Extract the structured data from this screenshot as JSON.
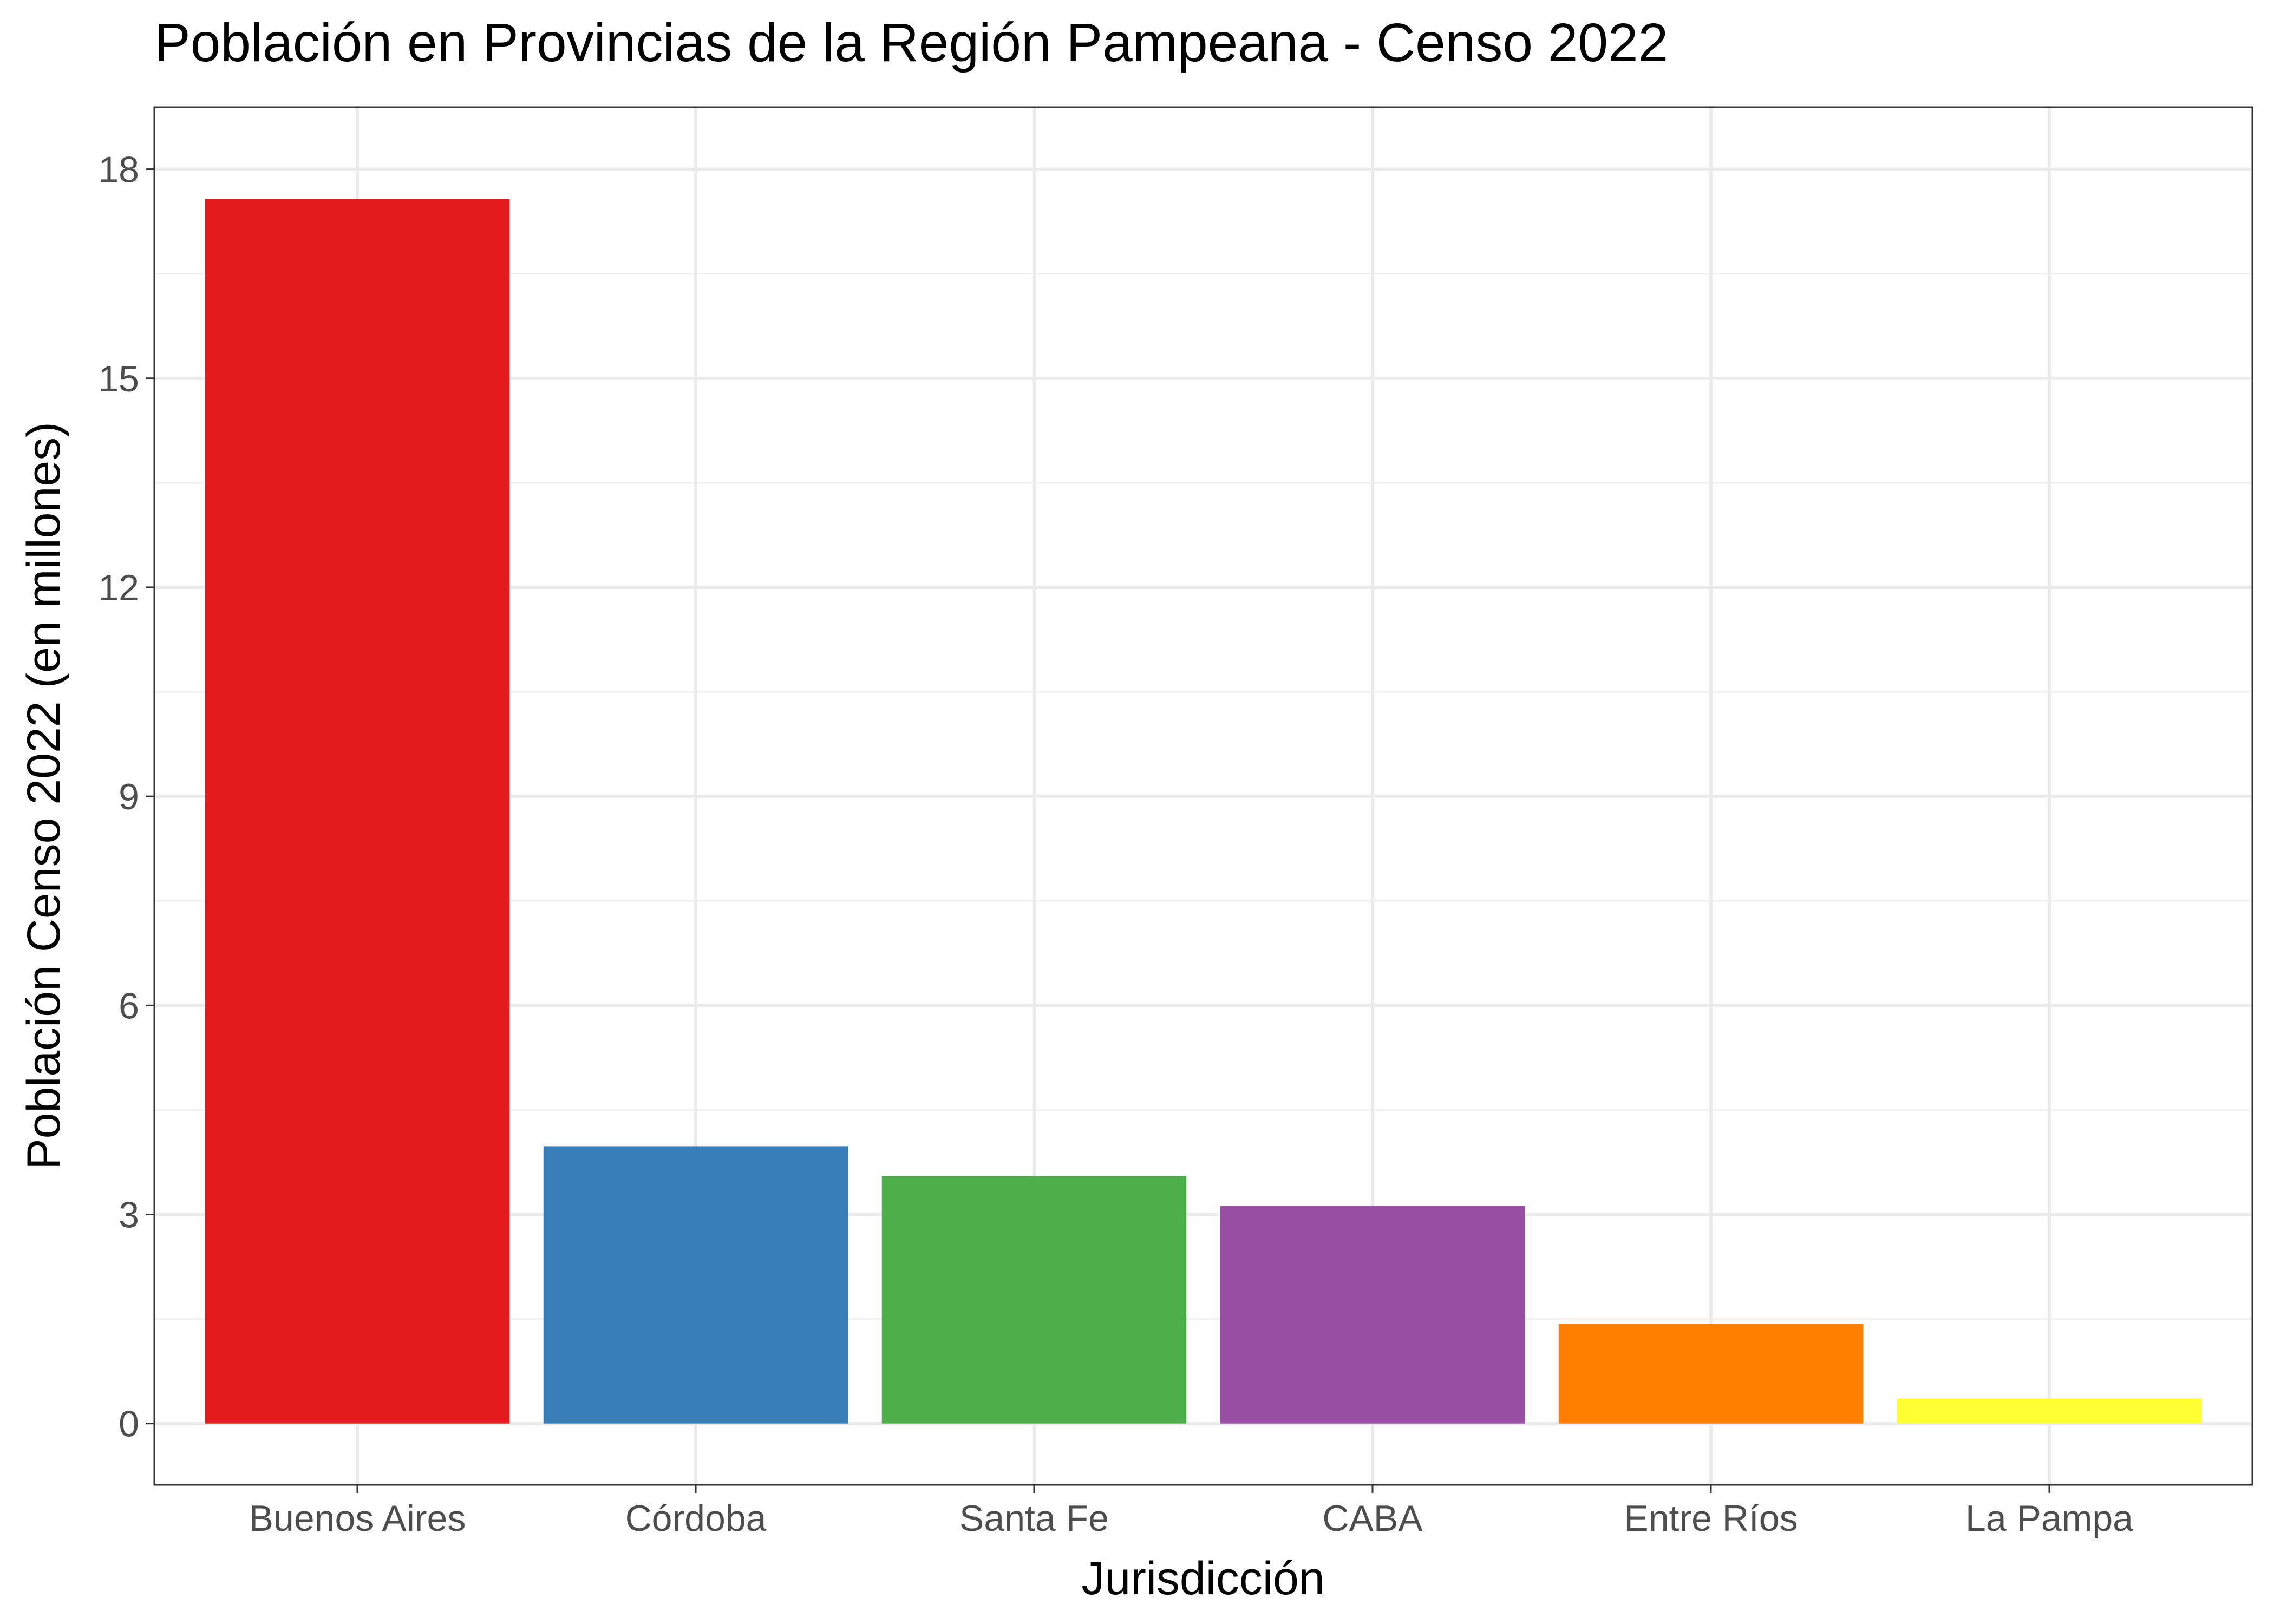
{
  "chart_data": {
    "type": "bar",
    "title": "Población en Provincias de la Región Pampeana - Censo 2022",
    "xlabel": "Jurisdicción",
    "ylabel": "Población Censo 2022 (en millones)",
    "categories": [
      "Buenos Aires",
      "Córdoba",
      "Santa Fe",
      "CABA",
      "Entre Ríos",
      "La Pampa"
    ],
    "values": [
      17.57,
      3.98,
      3.55,
      3.12,
      1.43,
      0.36
    ],
    "colors": [
      "#E41A1C",
      "#377EB8",
      "#4DAF4A",
      "#984EA3",
      "#FF7F00",
      "#FFFF33"
    ],
    "ylim": [
      -0.88,
      18.89
    ],
    "yticks": [
      0,
      3,
      6,
      9,
      12,
      15,
      18
    ],
    "yticks_labels": [
      "0",
      "3",
      "6",
      "9",
      "12",
      "15",
      "18"
    ],
    "grid": true,
    "legend": "none"
  }
}
